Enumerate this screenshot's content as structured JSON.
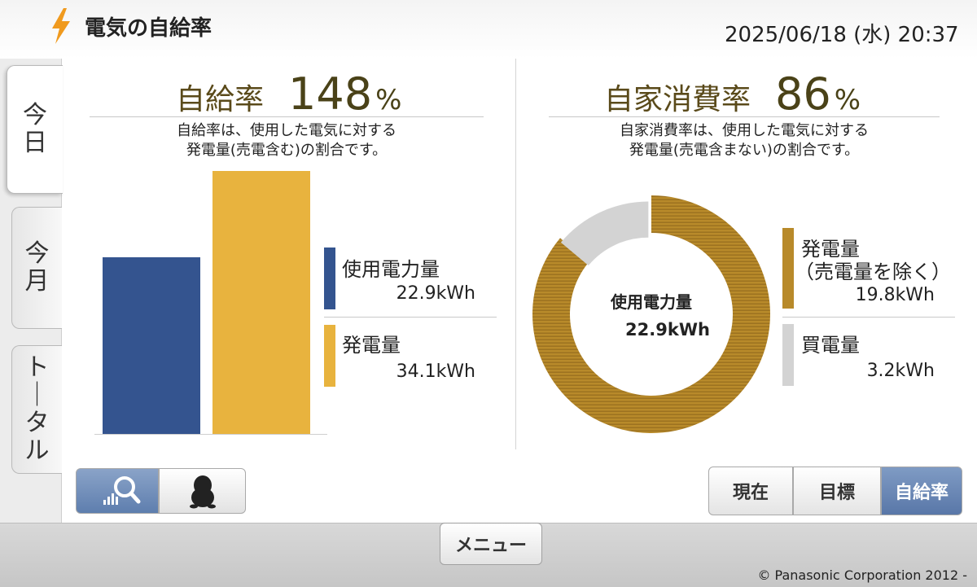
{
  "header": {
    "title": "電気の自給率",
    "datetime": "2025/06/18 (水) 20:37",
    "icon": "lightning-bolt-icon"
  },
  "tabs": [
    {
      "label": "今日",
      "active": true
    },
    {
      "label": "今月",
      "active": false
    },
    {
      "label": "トータル",
      "active": false
    }
  ],
  "left": {
    "heading_label": "自給率",
    "heading_value": "148",
    "heading_unit": "%",
    "description_line1": "自給率は、使用した電気に対する",
    "description_line2": "発電量(売電含む)の割合です。",
    "legend": [
      {
        "label": "使用電力量",
        "value": "22.9kWh",
        "color": "#34548f"
      },
      {
        "label": "発電量",
        "value": "34.1kWh",
        "color": "#e8b33e"
      }
    ]
  },
  "right": {
    "heading_label": "自家消費率",
    "heading_value": "86",
    "heading_unit": "%",
    "description_line1": "自家消費率は、使用した電気に対する",
    "description_line2": "発電量(売電含まない)の割合です。",
    "center_label": "使用電力量",
    "center_value": "22.9kWh",
    "legend": [
      {
        "label": "発電量",
        "sublabel": "（売電量を除く）",
        "value": "19.8kWh",
        "color": "#b88a2a"
      },
      {
        "label": "買電量",
        "value": "3.2kWh",
        "color": "#d3d3d3"
      }
    ]
  },
  "chart_data": [
    {
      "type": "bar",
      "categories": [
        "使用電力量",
        "発電量"
      ],
      "values": [
        22.9,
        34.1
      ],
      "ylim": [
        0,
        34.1
      ],
      "colors": [
        "#34548f",
        "#e8b33e"
      ]
    },
    {
      "type": "pie",
      "categories": [
        "発電量（売電量を除く）",
        "買電量"
      ],
      "values": [
        19.8,
        3.2
      ],
      "colors": [
        "#b88a2a",
        "#d3d3d3"
      ]
    }
  ],
  "controls": {
    "toggle_left": [
      "zoom-chart-icon",
      "penguin-character-icon"
    ],
    "segments": [
      {
        "label": "現在",
        "active": false
      },
      {
        "label": "目標",
        "active": false
      },
      {
        "label": "自給率",
        "active": true
      }
    ]
  },
  "footer": {
    "menu_label": "メニュー",
    "copyright": "© Panasonic Corporation 2012 -"
  }
}
